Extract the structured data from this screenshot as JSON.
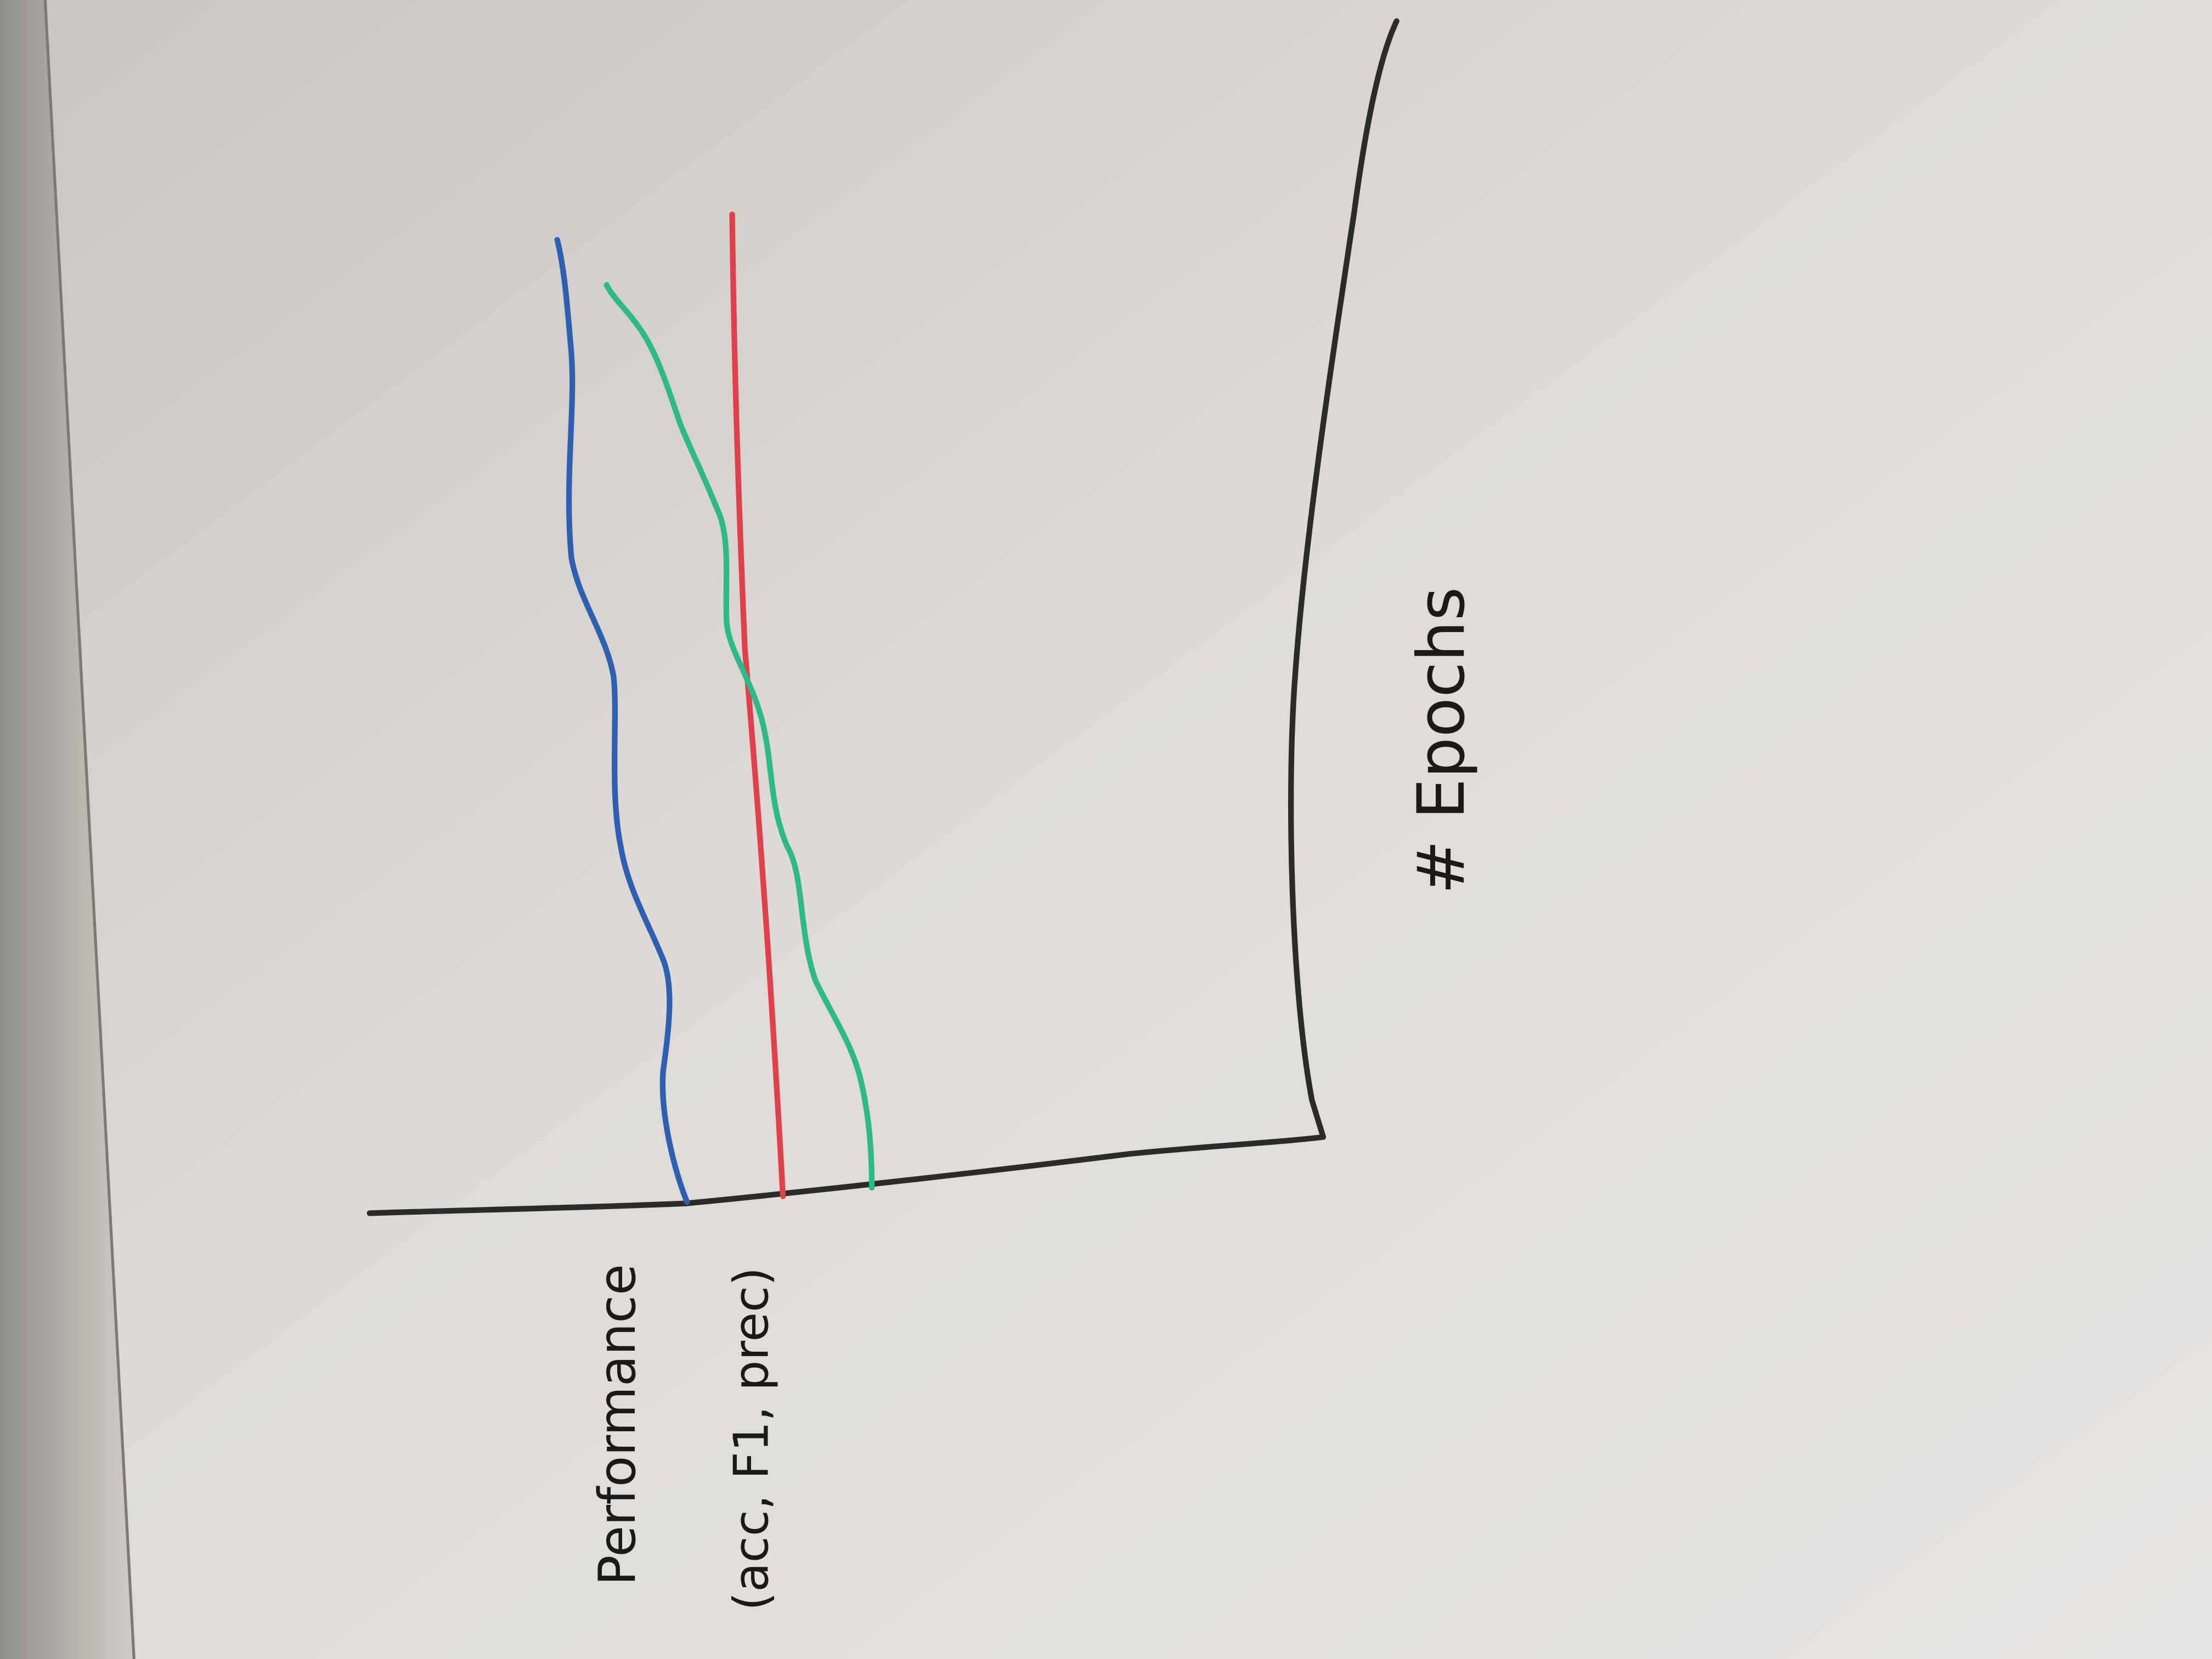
{
  "axis_labels": {
    "y": {
      "title": "Performance",
      "subtitle": "(acc, F1, prec)"
    },
    "x": "# Epochs"
  }
}
